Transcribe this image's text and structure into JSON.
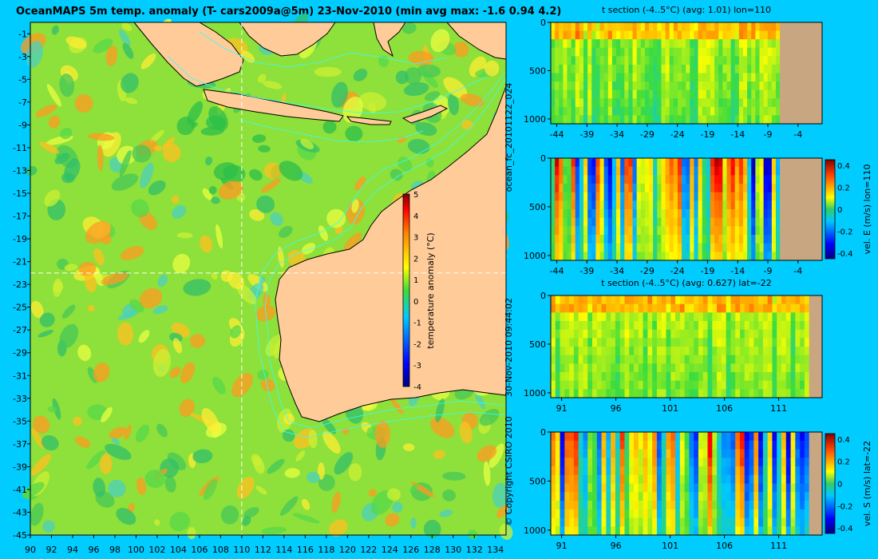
{
  "main_title": "OceanMAPS 5m temp. anomaly (T- cars2009a@5m) 23-Nov-2010 (min avg max: -1.6 0.94 4.2)",
  "side_texts": {
    "forecast_id": "ocean_fc_20101122_024",
    "timestamp": "30-Nov-2010 09:44:02",
    "copyright": "© Copyright CSIRO 2010"
  },
  "colors": {
    "background": "#00ccff",
    "land": "#ffcc99",
    "section_land": "#c8a682",
    "guide": "#ffffff",
    "contour": "#33ffff"
  },
  "chart_data": [
    {
      "type": "heatmap",
      "title": "OceanMAPS 5m temp. anomaly (T- cars2009a@5m) 23-Nov-2010 (min avg max: -1.6 0.94 4.2)",
      "x_ticks": [
        "90",
        "92",
        "94",
        "96",
        "98",
        "100",
        "102",
        "104",
        "106",
        "108",
        "110",
        "112",
        "114",
        "116",
        "118",
        "120",
        "122",
        "124",
        "126",
        "128",
        "130",
        "132",
        "134"
      ],
      "y_ticks": [
        "-1",
        "-3",
        "-5",
        "-7",
        "-9",
        "-11",
        "-13",
        "-15",
        "-17",
        "-19",
        "-21",
        "-23",
        "-25",
        "-27",
        "-29",
        "-31",
        "-33",
        "-35",
        "-37",
        "-39",
        "-41",
        "-43",
        "-45"
      ],
      "xlim": [
        90,
        135
      ],
      "ylim": [
        -45,
        0
      ],
      "guide_lon": 110,
      "guide_lat": -22,
      "stats": {
        "min": -1.6,
        "avg": 0.94,
        "max": 4.2
      },
      "colorbar": {
        "label": "temperature anomaly (°C)",
        "ticks": [
          "5",
          "4",
          "3",
          "2",
          "1",
          "0",
          "-1",
          "-2",
          "-3",
          "-4"
        ],
        "range": [
          -4,
          5
        ]
      }
    },
    {
      "type": "heatmap",
      "title": "t section (-4..5°C) (avg: 1.01) lon=110",
      "x_ticks": [
        "-44",
        "-39",
        "-34",
        "-29",
        "-24",
        "-19",
        "-14",
        "-9",
        "-4"
      ],
      "y_ticks": [
        "0",
        "500",
        "1000"
      ],
      "xlim": [
        -45,
        0
      ],
      "ylim": [
        1050,
        0
      ],
      "avg": 1.01
    },
    {
      "type": "heatmap",
      "title": "",
      "x_ticks": [
        "-44",
        "-39",
        "-34",
        "-29",
        "-24",
        "-19",
        "-14",
        "-9",
        "-4"
      ],
      "y_ticks": [
        "0",
        "500",
        "1000"
      ],
      "xlim": [
        -45,
        0
      ],
      "ylim": [
        1050,
        0
      ],
      "colorbar": {
        "label": "vel. E (m/s) lon=110",
        "ticks": [
          "0.4",
          "0.2",
          "0",
          "-0.2",
          "-0.4"
        ],
        "range": [
          -0.45,
          0.45
        ]
      }
    },
    {
      "type": "heatmap",
      "title": "t section (-4..5°C) (avg: 0.627) lat=-22",
      "x_ticks": [
        "91",
        "96",
        "101",
        "106",
        "111"
      ],
      "y_ticks": [
        "0",
        "500",
        "1000"
      ],
      "xlim": [
        90,
        115
      ],
      "ylim": [
        1050,
        0
      ],
      "avg": 0.627
    },
    {
      "type": "heatmap",
      "title": "",
      "x_ticks": [
        "91",
        "96",
        "101",
        "106",
        "111"
      ],
      "y_ticks": [
        "0",
        "500",
        "1000"
      ],
      "xlim": [
        90,
        115
      ],
      "ylim": [
        1050,
        0
      ],
      "colorbar": {
        "label": "vel. S (m/s) lat=-22",
        "ticks": [
          "0.4",
          "0.2",
          "0",
          "-0.2",
          "-0.4"
        ],
        "range": [
          -0.45,
          0.45
        ]
      }
    }
  ]
}
